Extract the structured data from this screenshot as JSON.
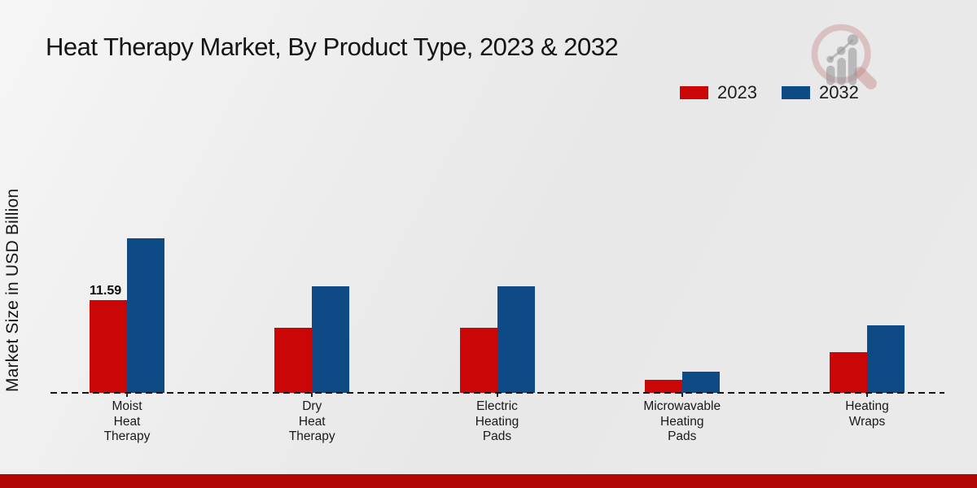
{
  "title": "Heat Therapy Market, By Product Type, 2023 & 2032",
  "y_axis_label": "Market Size in USD Billion",
  "legend": [
    {
      "label": "2023",
      "color": "#cb0606"
    },
    {
      "label": "2032",
      "color": "#0d4a86"
    }
  ],
  "colors": {
    "series_2023": "#cb0606",
    "series_2032": "#0d4a86",
    "footer_bar": "#b10707",
    "axis_line": "#161616",
    "background": "#eaeaea"
  },
  "watermark_icon": "magnifier-bar-chart-logo",
  "chart_data": {
    "type": "bar",
    "title": "Heat Therapy Market, By Product Type, 2023 & 2032",
    "ylabel": "Market Size in USD Billion",
    "xlabel": "",
    "categories": [
      "Moist Heat Therapy",
      "Dry Heat Therapy",
      "Electric Heating Pads",
      "Microwavable Heating Pads",
      "Heating Wraps"
    ],
    "categories_display": [
      [
        "Moist",
        "Heat",
        "Therapy"
      ],
      [
        "Dry",
        "Heat",
        "Therapy"
      ],
      [
        "Electric",
        "Heating",
        "Pads"
      ],
      [
        "Microwavable",
        "Heating",
        "Pads"
      ],
      [
        "Heating",
        "Wraps"
      ]
    ],
    "series": [
      {
        "name": "2023",
        "color": "#cb0606",
        "values": [
          11.59,
          8.2,
          8.2,
          1.6,
          5.1
        ]
      },
      {
        "name": "2032",
        "color": "#0d4a86",
        "values": [
          19.4,
          13.4,
          13.4,
          2.7,
          8.5
        ]
      }
    ],
    "value_labels": [
      {
        "series": "2023",
        "category_index": 0,
        "text": "11.59"
      }
    ],
    "ylim": [
      0,
      21
    ],
    "grid": false,
    "legend_position": "top-right",
    "baseline_style": "dashed"
  }
}
